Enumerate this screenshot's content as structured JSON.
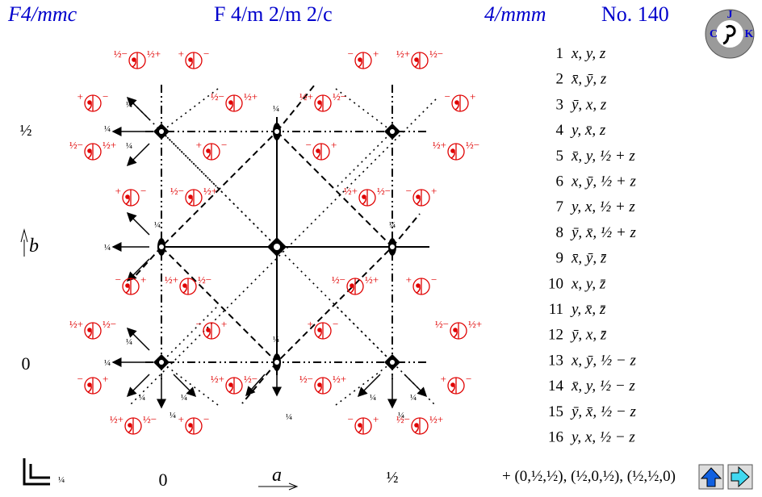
{
  "header": {
    "symbol": "F4/mmc",
    "full_symbol": "F 4/m 2/m 2/c",
    "point_group": "4/mmm",
    "number": "No. 140"
  },
  "logo": {
    "letters": [
      "J",
      "K",
      "C"
    ]
  },
  "diagram": {
    "axis_b": {
      "label": "b",
      "half": "½",
      "zero": "0"
    },
    "axis_a": {
      "label": "a",
      "zero": "0",
      "half": "½"
    },
    "corner_height": "¼",
    "symbols": [
      [
        "½−",
        "½+"
      ],
      [
        "+",
        "−"
      ],
      [
        "−",
        "+"
      ],
      [
        "½+",
        "½−"
      ],
      [
        "+",
        "−"
      ],
      [
        "½−",
        "½+"
      ],
      [
        "½+",
        "½−"
      ],
      [
        "−",
        "+"
      ],
      [
        "½−",
        "½+"
      ],
      [
        "+",
        "−"
      ],
      [
        "−",
        "+"
      ],
      [
        "½+",
        "½−"
      ],
      [
        "+",
        "−"
      ],
      [
        "½−",
        "½+"
      ],
      [
        "½+",
        "½−"
      ],
      [
        "−",
        "+"
      ],
      [
        "−",
        "+"
      ],
      [
        "½+",
        "½−"
      ],
      [
        "½−",
        "½+"
      ],
      [
        "+",
        "−"
      ],
      [
        "½+",
        "½−"
      ],
      [
        "−",
        "+"
      ],
      [
        "+",
        "−"
      ],
      [
        "½−",
        "½+"
      ],
      [
        "−",
        "+"
      ],
      [
        "½+",
        "½−"
      ],
      [
        "½−",
        "½+"
      ],
      [
        "+",
        "−"
      ],
      [
        "½+",
        "½−"
      ],
      [
        "+",
        "−"
      ],
      [
        "−",
        "+"
      ],
      [
        "½−",
        "½+"
      ]
    ],
    "height_labels": [
      "¼",
      "¼",
      "¼",
      "¼",
      "¼",
      "¼",
      "¼",
      "¼",
      "¼",
      "¼",
      "¼",
      "¼",
      "¼",
      "¼",
      "¼",
      "¼",
      "¼"
    ]
  },
  "positions": [
    {
      "n": "1",
      "coord": "x, y, z"
    },
    {
      "n": "2",
      "coord": "x̄, ȳ, z"
    },
    {
      "n": "3",
      "coord": "ȳ, x, z"
    },
    {
      "n": "4",
      "coord": "y, x̄, z"
    },
    {
      "n": "5",
      "coord": "x̄, y, ½ + z"
    },
    {
      "n": "6",
      "coord": "x, ȳ, ½ + z"
    },
    {
      "n": "7",
      "coord": "y, x, ½ + z"
    },
    {
      "n": "8",
      "coord": "ȳ, x̄, ½ + z"
    },
    {
      "n": "9",
      "coord": "x̄, ȳ, z̄"
    },
    {
      "n": "10",
      "coord": "x, y, z̄"
    },
    {
      "n": "11",
      "coord": "y, x̄, z̄"
    },
    {
      "n": "12",
      "coord": "ȳ, x, z̄"
    },
    {
      "n": "13",
      "coord": "x, ȳ, ½ − z"
    },
    {
      "n": "14",
      "coord": "x̄, y, ½ − z"
    },
    {
      "n": "15",
      "coord": "ȳ, x̄, ½ − z"
    },
    {
      "n": "16",
      "coord": "y, x, ½ − z"
    }
  ],
  "centering": "+ (0,½,½), (½,0,½), (½,½,0)"
}
